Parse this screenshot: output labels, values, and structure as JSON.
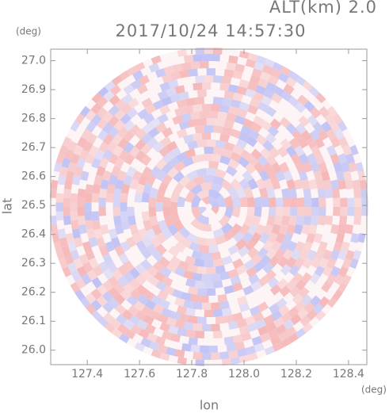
{
  "chart_data": {
    "type": "radar-field",
    "title": "2017/10/24 14:57:30",
    "subtitle": "ALT(km) 2.0",
    "xlabel": "lon",
    "ylabel": "lat",
    "xunit": "(deg)",
    "yunit": "(deg)",
    "xlim": [
      127.26,
      128.47
    ],
    "ylim": [
      25.95,
      27.04
    ],
    "xticks": [
      127.4,
      127.6,
      127.8,
      {
        "value": 128,
        "label": "128.0"
      },
      128.2,
      128.4
    ],
    "yticks": [
      {
        "value": 26,
        "label": "26.0"
      },
      26.1,
      26.2,
      26.3,
      26.4,
      26.5,
      26.6,
      26.7,
      26.8,
      26.9,
      {
        "value": 27,
        "label": "27.0"
      }
    ],
    "center": [
      127.865,
      26.495
    ],
    "colors": [
      "#f4b0b0",
      "#b8bcf4"
    ]
  }
}
